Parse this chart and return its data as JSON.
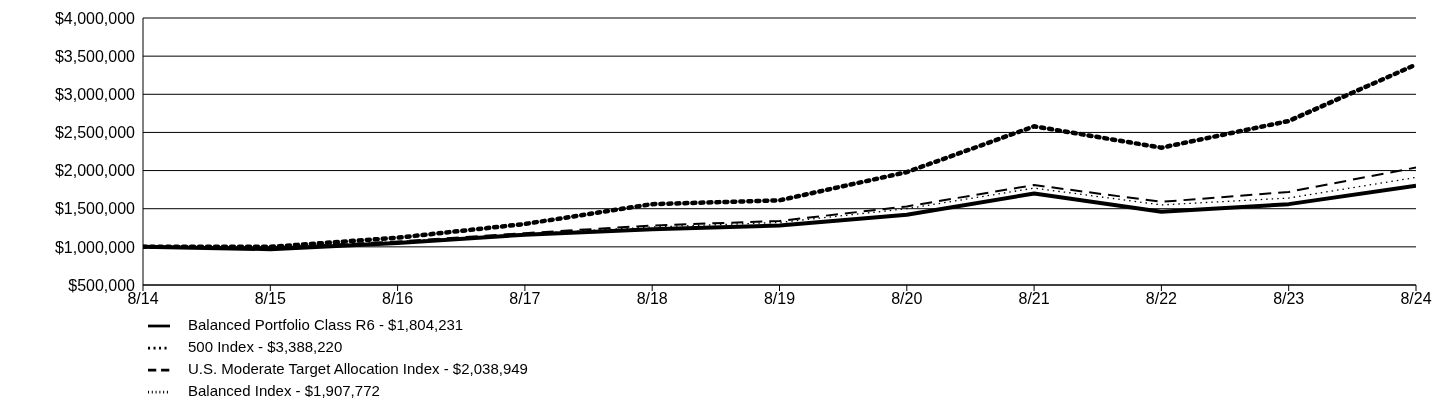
{
  "chart_data": {
    "type": "line",
    "categories": [
      "8/14",
      "8/15",
      "8/16",
      "8/17",
      "8/18",
      "8/19",
      "8/20",
      "8/21",
      "8/22",
      "8/23",
      "8/24"
    ],
    "series": [
      {
        "name": "Balanced Portfolio Class R6 - $1,804,231",
        "color": "#000000",
        "line_style": "solid",
        "values": [
          1000000,
          970000,
          1050000,
          1160000,
          1230000,
          1280000,
          1420000,
          1700000,
          1460000,
          1560000,
          1800000
        ]
      },
      {
        "name": "500 Index - $3,388,220",
        "color": "#000000",
        "line_style": "dotted",
        "values": [
          1000000,
          1000000,
          1120000,
          1300000,
          1560000,
          1610000,
          1980000,
          2580000,
          2300000,
          2650000,
          3390000
        ]
      },
      {
        "name": "U.S. Moderate Target Allocation Index - $2,038,949",
        "color": "#000000",
        "line_style": "dashed",
        "values": [
          1000000,
          990000,
          1070000,
          1180000,
          1280000,
          1340000,
          1530000,
          1810000,
          1590000,
          1720000,
          2040000
        ]
      },
      {
        "name": "Balanced Index - $1,907,772",
        "color": "#000000",
        "line_style": "dotted",
        "values": [
          1000000,
          990000,
          1070000,
          1170000,
          1260000,
          1320000,
          1500000,
          1770000,
          1550000,
          1640000,
          1910000
        ]
      }
    ],
    "ylim": [
      500000,
      4000000
    ],
    "yticks": [
      {
        "value": 500000,
        "label": "$500,000"
      },
      {
        "value": 1000000,
        "label": "$1,000,000"
      },
      {
        "value": 1500000,
        "label": "$1,500,000"
      },
      {
        "value": 2000000,
        "label": "$2,000,000"
      },
      {
        "value": 2500000,
        "label": "$2,500,000"
      },
      {
        "value": 3000000,
        "label": "$3,000,000"
      },
      {
        "value": 3500000,
        "label": "$3,500,000"
      },
      {
        "value": 4000000,
        "label": "$4,000,000"
      }
    ],
    "grid": "y",
    "legend": "bottom",
    "marker": "none"
  }
}
